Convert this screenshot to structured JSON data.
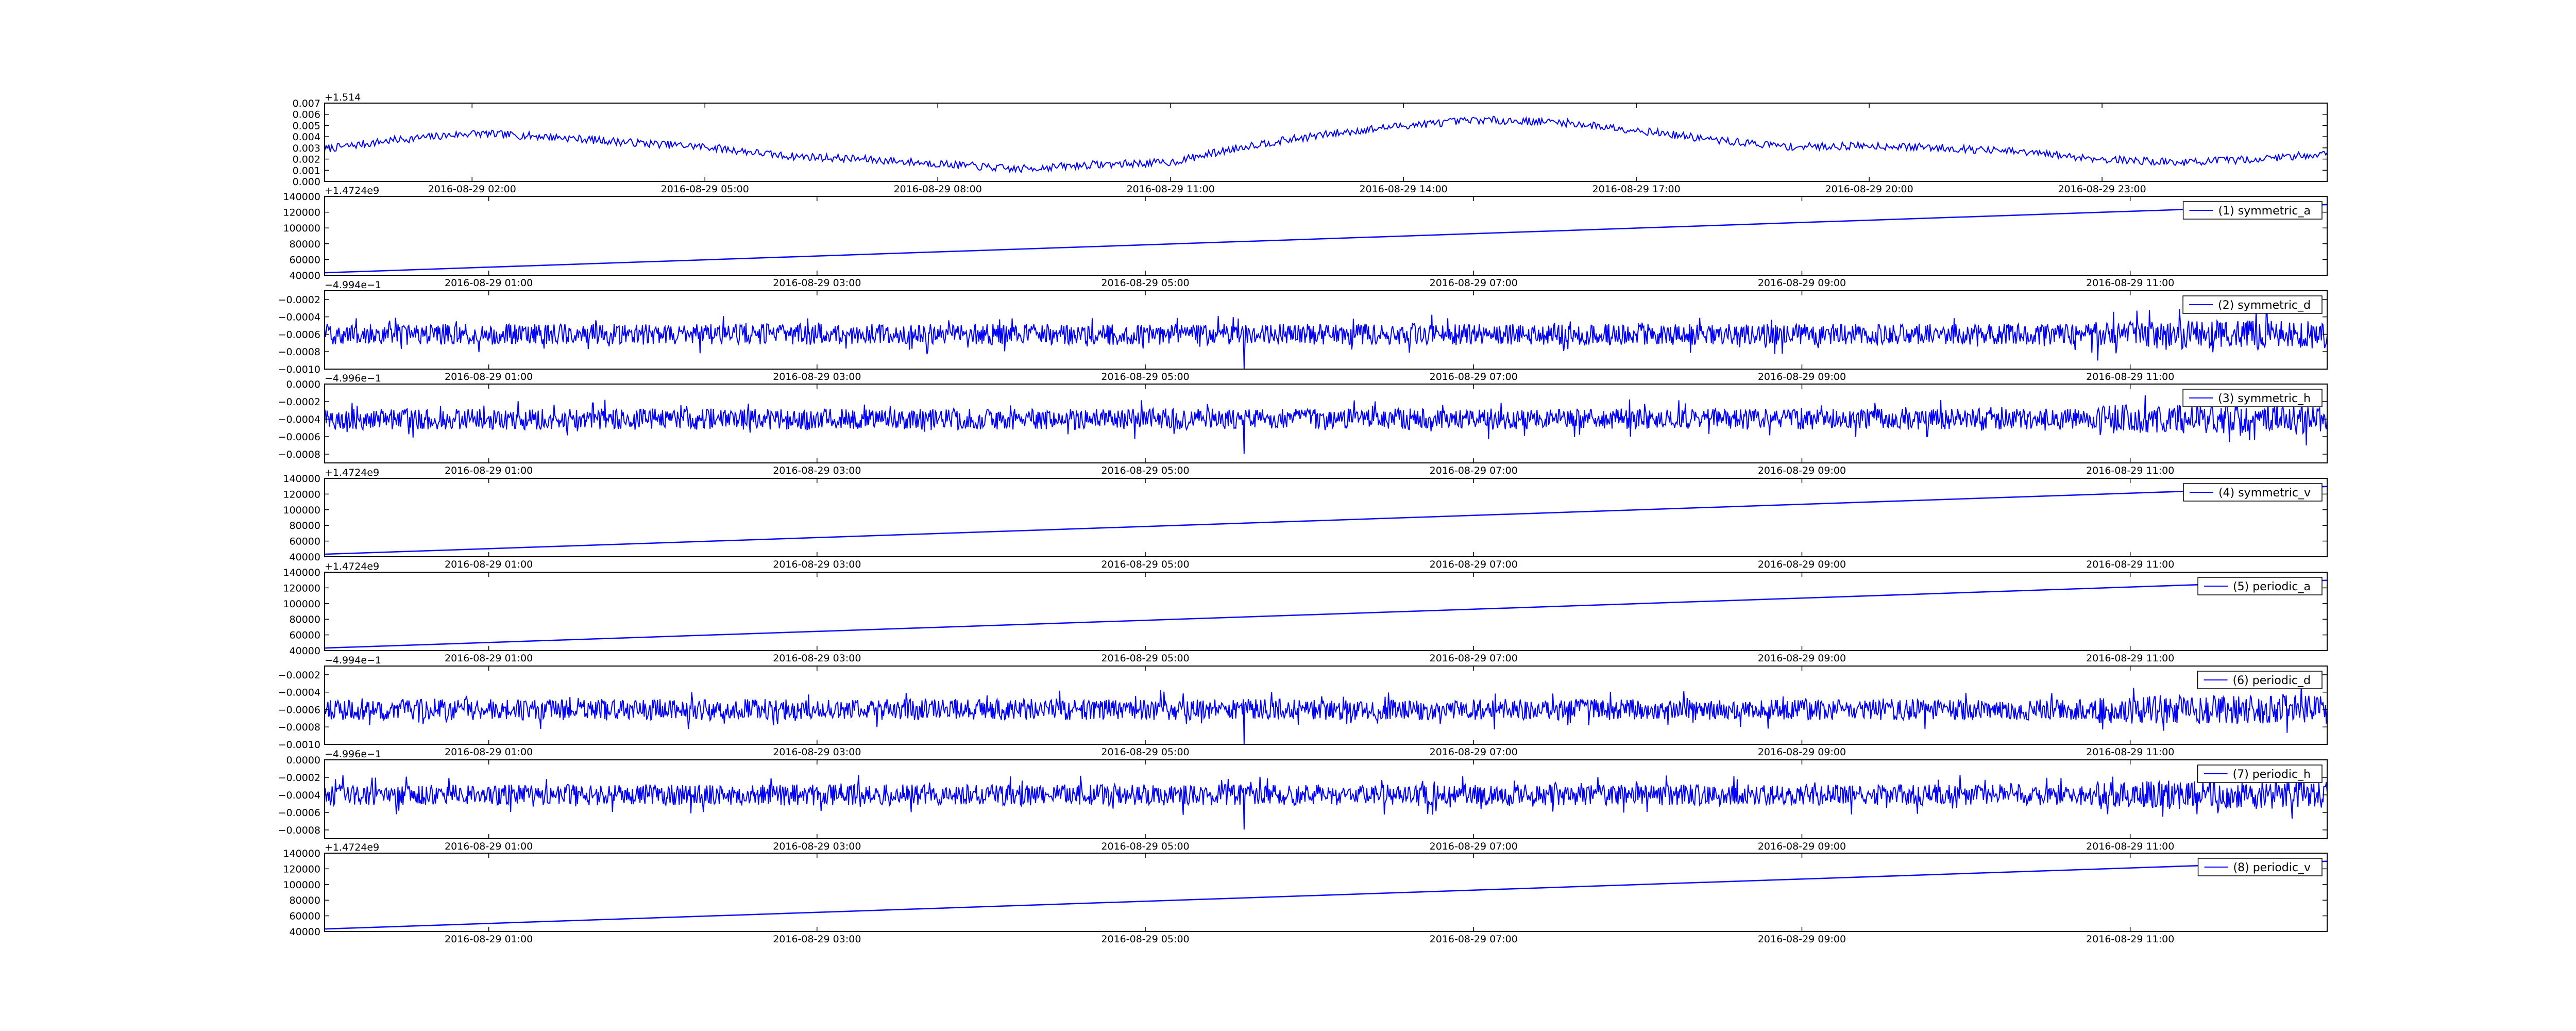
{
  "chart_data": [
    {
      "type": "line",
      "title": "",
      "offset_label": "+1.514",
      "xlabel": "",
      "ylabel": "",
      "ylim": [
        0.0,
        0.007
      ],
      "yticks": [
        "0.000",
        "0.001",
        "0.002",
        "0.003",
        "0.004",
        "0.005",
        "0.006",
        "0.007"
      ],
      "xticks": [
        "2016-08-29 02:00",
        "2016-08-29 05:00",
        "2016-08-29 08:00",
        "2016-08-29 11:00",
        "2016-08-29 14:00",
        "2016-08-29 17:00",
        "2016-08-29 20:00",
        "2016-08-29 23:00"
      ],
      "xtick_hours": [
        2,
        5,
        8,
        11,
        14,
        17,
        20,
        23
      ],
      "xlim_hours": [
        0.1,
        25.9
      ],
      "legend": null,
      "line_color": "#0000ff",
      "series": [
        {
          "x_hours": [
            0.1,
            1,
            2,
            3,
            4,
            5,
            6,
            7,
            8,
            9,
            10,
            11,
            12,
            13,
            14,
            15,
            16,
            17,
            18,
            19,
            20,
            21,
            22,
            23,
            24,
            25,
            25.9
          ],
          "y": [
            0.0029,
            0.0037,
            0.0043,
            0.004,
            0.0035,
            0.0031,
            0.0023,
            0.002,
            0.0016,
            0.0011,
            0.0015,
            0.0017,
            0.0032,
            0.0042,
            0.005,
            0.0055,
            0.0053,
            0.0046,
            0.0037,
            0.0031,
            0.0032,
            0.003,
            0.0026,
            0.002,
            0.0017,
            0.002,
            0.0025
          ]
        }
      ]
    },
    {
      "type": "line",
      "offset_label": "+1.4724e9",
      "ylim": [
        40000,
        140000
      ],
      "yticks": [
        "40000",
        "60000",
        "80000",
        "100000",
        "120000",
        "140000"
      ],
      "xticks": [
        "2016-08-29 01:00",
        "2016-08-29 03:00",
        "2016-08-29 05:00",
        "2016-08-29 07:00",
        "2016-08-29 09:00",
        "2016-08-29 11:00"
      ],
      "xtick_hours": [
        1,
        3,
        5,
        7,
        9,
        11
      ],
      "xlim_hours": [
        0.0,
        12.2
      ],
      "legend": "(1) symmetric_a",
      "legend_loc": "upper right",
      "series": [
        {
          "name": "(1) symmetric_a",
          "x_hours": [
            0.0,
            12.2
          ],
          "y": [
            43200,
            129600
          ]
        }
      ]
    },
    {
      "type": "line",
      "offset_label": "−4.994e−1",
      "ylim": [
        -0.001,
        -0.0001
      ],
      "yticks": [
        "−0.0010",
        "−0.0008",
        "−0.0006",
        "−0.0004",
        "−0.0002"
      ],
      "ytick_values": [
        -0.001,
        -0.0008,
        -0.0006,
        -0.0004,
        -0.0002
      ],
      "xticks": [
        "2016-08-29 01:00",
        "2016-08-29 03:00",
        "2016-08-29 05:00",
        "2016-08-29 07:00",
        "2016-08-29 09:00",
        "2016-08-29 11:00"
      ],
      "xtick_hours": [
        1,
        3,
        5,
        7,
        9,
        11
      ],
      "xlim_hours": [
        0.0,
        12.2
      ],
      "legend": "(2) symmetric_d",
      "legend_loc": "upper right",
      "series": [
        {
          "name": "(2) symmetric_d",
          "baseline": -0.0006,
          "amplitude": 0.00012
        }
      ]
    },
    {
      "type": "line",
      "offset_label": "−4.996e−1",
      "ylim": [
        -0.0009,
        0.0
      ],
      "yticks": [
        "−0.0008",
        "−0.0006",
        "−0.0004",
        "−0.0002",
        "0.0000"
      ],
      "ytick_values": [
        -0.0008,
        -0.0006,
        -0.0004,
        -0.0002,
        0.0
      ],
      "xticks": [
        "2016-08-29 01:00",
        "2016-08-29 03:00",
        "2016-08-29 05:00",
        "2016-08-29 07:00",
        "2016-08-29 09:00",
        "2016-08-29 11:00"
      ],
      "xtick_hours": [
        1,
        3,
        5,
        7,
        9,
        11
      ],
      "xlim_hours": [
        0.0,
        12.2
      ],
      "legend": "(3) symmetric_h",
      "legend_loc": "upper right",
      "series": [
        {
          "name": "(3) symmetric_h",
          "baseline": -0.0004,
          "amplitude": 0.00012
        }
      ]
    },
    {
      "type": "line",
      "offset_label": "+1.4724e9",
      "ylim": [
        40000,
        140000
      ],
      "yticks": [
        "40000",
        "60000",
        "80000",
        "100000",
        "120000",
        "140000"
      ],
      "xticks": [
        "2016-08-29 01:00",
        "2016-08-29 03:00",
        "2016-08-29 05:00",
        "2016-08-29 07:00",
        "2016-08-29 09:00",
        "2016-08-29 11:00"
      ],
      "xtick_hours": [
        1,
        3,
        5,
        7,
        9,
        11
      ],
      "xlim_hours": [
        0.0,
        12.2
      ],
      "legend": "(4) symmetric_v",
      "legend_loc": "upper right",
      "series": [
        {
          "name": "(4) symmetric_v",
          "x_hours": [
            0.0,
            12.2
          ],
          "y": [
            43200,
            129600
          ]
        }
      ]
    },
    {
      "type": "line",
      "offset_label": "+1.4724e9",
      "ylim": [
        40000,
        140000
      ],
      "yticks": [
        "40000",
        "60000",
        "80000",
        "100000",
        "120000",
        "140000"
      ],
      "xticks": [
        "2016-08-29 01:00",
        "2016-08-29 03:00",
        "2016-08-29 05:00",
        "2016-08-29 07:00",
        "2016-08-29 09:00",
        "2016-08-29 11:00"
      ],
      "xtick_hours": [
        1,
        3,
        5,
        7,
        9,
        11
      ],
      "xlim_hours": [
        0.0,
        12.2
      ],
      "legend": "(5) periodic_a",
      "legend_loc": "upper right",
      "series": [
        {
          "name": "(5) periodic_a",
          "x_hours": [
            0.0,
            12.2
          ],
          "y": [
            43200,
            129600
          ]
        }
      ]
    },
    {
      "type": "line",
      "offset_label": "−4.994e−1",
      "ylim": [
        -0.001,
        -0.0001
      ],
      "yticks": [
        "−0.0010",
        "−0.0008",
        "−0.0006",
        "−0.0004",
        "−0.0002"
      ],
      "ytick_values": [
        -0.001,
        -0.0008,
        -0.0006,
        -0.0004,
        -0.0002
      ],
      "xticks": [
        "2016-08-29 01:00",
        "2016-08-29 03:00",
        "2016-08-29 05:00",
        "2016-08-29 07:00",
        "2016-08-29 09:00",
        "2016-08-29 11:00"
      ],
      "xtick_hours": [
        1,
        3,
        5,
        7,
        9,
        11
      ],
      "xlim_hours": [
        0.0,
        12.2
      ],
      "legend": "(6) periodic_d",
      "legend_loc": "upper right",
      "series": [
        {
          "name": "(6) periodic_d",
          "baseline": -0.0006,
          "amplitude": 0.00012
        }
      ]
    },
    {
      "type": "line",
      "offset_label": "−4.996e−1",
      "ylim": [
        -0.0009,
        0.0
      ],
      "yticks": [
        "−0.0008",
        "−0.0006",
        "−0.0004",
        "−0.0002",
        "0.0000"
      ],
      "ytick_values": [
        -0.0008,
        -0.0006,
        -0.0004,
        -0.0002,
        0.0
      ],
      "xticks": [
        "2016-08-29 01:00",
        "2016-08-29 03:00",
        "2016-08-29 05:00",
        "2016-08-29 07:00",
        "2016-08-29 09:00",
        "2016-08-29 11:00"
      ],
      "xtick_hours": [
        1,
        3,
        5,
        7,
        9,
        11
      ],
      "xlim_hours": [
        0.0,
        12.2
      ],
      "legend": "(7) periodic_h",
      "legend_loc": "upper right",
      "series": [
        {
          "name": "(7) periodic_h",
          "baseline": -0.0004,
          "amplitude": 0.00012
        }
      ]
    },
    {
      "type": "line",
      "offset_label": "+1.4724e9",
      "ylim": [
        40000,
        140000
      ],
      "yticks": [
        "40000",
        "60000",
        "80000",
        "100000",
        "120000",
        "140000"
      ],
      "xticks": [
        "2016-08-29 01:00",
        "2016-08-29 03:00",
        "2016-08-29 05:00",
        "2016-08-29 07:00",
        "2016-08-29 09:00",
        "2016-08-29 11:00"
      ],
      "xtick_hours": [
        1,
        3,
        5,
        7,
        9,
        11
      ],
      "xlim_hours": [
        0.0,
        12.2
      ],
      "legend": "(8) periodic_v",
      "legend_loc": "upper right",
      "series": [
        {
          "name": "(8) periodic_v",
          "x_hours": [
            0.0,
            12.2
          ],
          "y": [
            43200,
            129600
          ]
        }
      ]
    }
  ]
}
